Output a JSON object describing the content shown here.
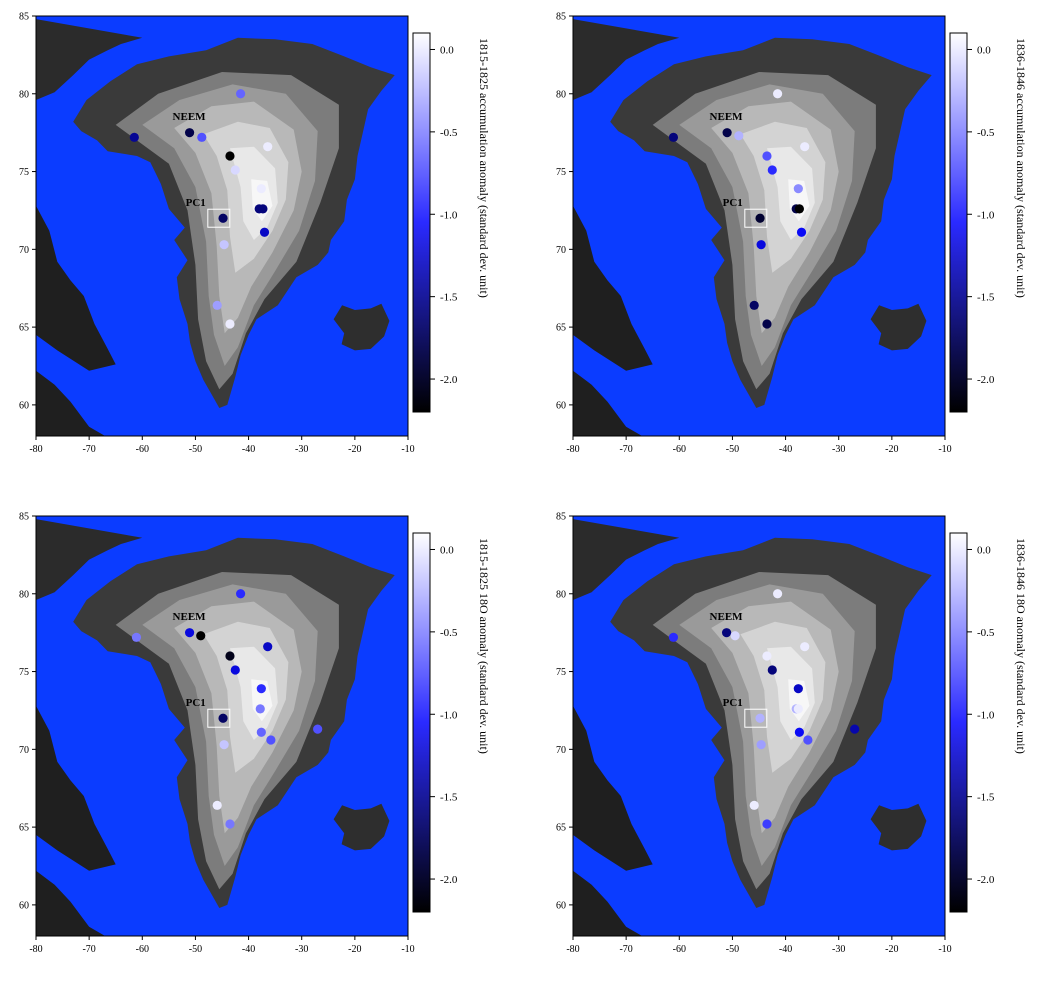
{
  "axes": {
    "x_ticks": [
      -80,
      -70,
      -60,
      -50,
      -40,
      -30,
      -20,
      -10
    ],
    "y_ticks": [
      60,
      65,
      70,
      75,
      80,
      85
    ],
    "xlim": [
      -80,
      -10
    ],
    "ylim": [
      58,
      85
    ]
  },
  "colorbar": {
    "ticks": [
      "0.0",
      "-0.5",
      "-1.0",
      "-1.5",
      "-2.0"
    ],
    "tick_values": [
      0,
      -0.5,
      -1.0,
      -1.5,
      -2.0
    ],
    "range": [
      -2.2,
      0.1
    ]
  },
  "colors": {
    "ocean": "#0b3cff",
    "low": "#000000",
    "mid": "#0a0aff",
    "high": "#ffffff"
  },
  "site_labels": {
    "neem": "NEEM",
    "pc1": "PC1"
  },
  "chart_data": [
    {
      "type": "scatter",
      "colorbar_title": "1815-1825 accumulation anomaly (standard dev. unit)",
      "points": [
        {
          "lon": -61.5,
          "lat": 77.2,
          "v": -1.6
        },
        {
          "lon": -51.1,
          "lat": 77.5,
          "v": -1.9
        },
        {
          "lon": -48.8,
          "lat": 77.2,
          "v": -0.8
        },
        {
          "lon": -41.5,
          "lat": 80.0,
          "v": -0.7
        },
        {
          "lon": -43.5,
          "lat": 76.0,
          "v": -2.2
        },
        {
          "lon": -42.5,
          "lat": 75.1,
          "v": -0.1
        },
        {
          "lon": -36.4,
          "lat": 76.6,
          "v": 0.0
        },
        {
          "lon": -37.6,
          "lat": 73.9,
          "v": 0.0
        },
        {
          "lon": -38.0,
          "lat": 72.6,
          "v": -1.7
        },
        {
          "lon": -37.3,
          "lat": 72.6,
          "v": -1.7
        },
        {
          "lon": -44.8,
          "lat": 72.0,
          "v": -1.8
        },
        {
          "lon": -37.0,
          "lat": 71.1,
          "v": -1.4
        },
        {
          "lon": -44.6,
          "lat": 70.3,
          "v": -0.2
        },
        {
          "lon": -45.9,
          "lat": 66.4,
          "v": -0.4
        },
        {
          "lon": -43.5,
          "lat": 65.2,
          "v": 0.0
        }
      ]
    },
    {
      "type": "scatter",
      "colorbar_title": "1836-1846 accumulation anomaly (standard dev. unit)",
      "points": [
        {
          "lon": -61.1,
          "lat": 77.2,
          "v": -1.7
        },
        {
          "lon": -51.0,
          "lat": 77.5,
          "v": -1.9
        },
        {
          "lon": -48.8,
          "lat": 77.3,
          "v": -0.3
        },
        {
          "lon": -41.5,
          "lat": 80.0,
          "v": 0.0
        },
        {
          "lon": -43.5,
          "lat": 76.0,
          "v": -0.8
        },
        {
          "lon": -42.5,
          "lat": 75.1,
          "v": -1.0
        },
        {
          "lon": -36.4,
          "lat": 76.6,
          "v": 0.0
        },
        {
          "lon": -37.6,
          "lat": 73.9,
          "v": -0.5
        },
        {
          "lon": -38.0,
          "lat": 72.6,
          "v": -1.9
        },
        {
          "lon": -37.4,
          "lat": 72.6,
          "v": -2.2
        },
        {
          "lon": -44.8,
          "lat": 72.0,
          "v": -2.0
        },
        {
          "lon": -37.0,
          "lat": 71.1,
          "v": -1.2
        },
        {
          "lon": -44.6,
          "lat": 70.3,
          "v": -1.3
        },
        {
          "lon": -45.9,
          "lat": 66.4,
          "v": -1.8
        },
        {
          "lon": -43.5,
          "lat": 65.2,
          "v": -1.9
        }
      ]
    },
    {
      "type": "scatter",
      "colorbar_title": "1815-1825  18O anomaly (standard dev. unit)",
      "points": [
        {
          "lon": -61.1,
          "lat": 77.2,
          "v": -0.6
        },
        {
          "lon": -51.1,
          "lat": 77.5,
          "v": -1.3
        },
        {
          "lon": -49.0,
          "lat": 77.3,
          "v": -2.2
        },
        {
          "lon": -41.5,
          "lat": 80.0,
          "v": -1.0
        },
        {
          "lon": -43.5,
          "lat": 76.0,
          "v": -2.1
        },
        {
          "lon": -42.5,
          "lat": 75.1,
          "v": -1.3
        },
        {
          "lon": -36.4,
          "lat": 76.6,
          "v": -1.4
        },
        {
          "lon": -37.6,
          "lat": 73.9,
          "v": -1.0
        },
        {
          "lon": -37.8,
          "lat": 72.6,
          "v": -0.6
        },
        {
          "lon": -44.8,
          "lat": 72.0,
          "v": -1.8
        },
        {
          "lon": -37.6,
          "lat": 71.1,
          "v": -0.7
        },
        {
          "lon": -35.8,
          "lat": 70.6,
          "v": -0.8
        },
        {
          "lon": -27.0,
          "lat": 71.3,
          "v": -0.8
        },
        {
          "lon": -44.6,
          "lat": 70.3,
          "v": -0.2
        },
        {
          "lon": -45.9,
          "lat": 66.4,
          "v": 0.0
        },
        {
          "lon": -43.5,
          "lat": 65.2,
          "v": -0.6
        }
      ]
    },
    {
      "type": "scatter",
      "colorbar_title": "1836-1846  18O anomaly (standard dev. unit)",
      "points": [
        {
          "lon": -61.1,
          "lat": 77.2,
          "v": -1.0
        },
        {
          "lon": -51.1,
          "lat": 77.5,
          "v": -1.7
        },
        {
          "lon": -49.5,
          "lat": 77.3,
          "v": -0.1
        },
        {
          "lon": -41.5,
          "lat": 80.0,
          "v": 0.0
        },
        {
          "lon": -43.5,
          "lat": 76.0,
          "v": 0.0
        },
        {
          "lon": -42.5,
          "lat": 75.1,
          "v": -1.7
        },
        {
          "lon": -36.4,
          "lat": 76.6,
          "v": 0.0
        },
        {
          "lon": -37.6,
          "lat": 73.9,
          "v": -1.4
        },
        {
          "lon": -38.0,
          "lat": 72.6,
          "v": -0.3
        },
        {
          "lon": -37.6,
          "lat": 72.6,
          "v": 0.0
        },
        {
          "lon": -44.8,
          "lat": 72.0,
          "v": -0.3
        },
        {
          "lon": -37.4,
          "lat": 71.1,
          "v": -1.2
        },
        {
          "lon": -35.8,
          "lat": 70.6,
          "v": -0.8
        },
        {
          "lon": -27.0,
          "lat": 71.3,
          "v": -1.5
        },
        {
          "lon": -44.6,
          "lat": 70.3,
          "v": -0.4
        },
        {
          "lon": -45.9,
          "lat": 66.4,
          "v": 0.0
        },
        {
          "lon": -43.5,
          "lat": 65.2,
          "v": -0.9
        }
      ]
    }
  ]
}
